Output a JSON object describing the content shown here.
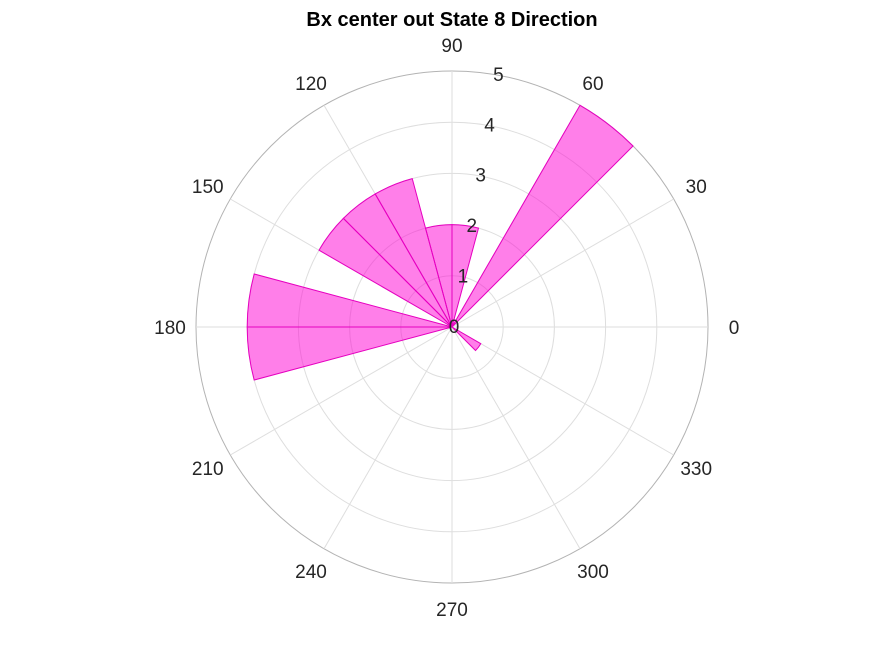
{
  "chart_data": {
    "type": "polar-histogram",
    "title": "Bx  center out State 8 Direction",
    "theta_ticks": [
      "0",
      "30",
      "60",
      "90",
      "120",
      "150",
      "180",
      "210",
      "240",
      "270",
      "300",
      "330"
    ],
    "theta_tick_degrees": [
      0,
      30,
      60,
      90,
      120,
      150,
      180,
      210,
      240,
      270,
      300,
      330
    ],
    "r_ticks": [
      "0",
      "1",
      "2",
      "3",
      "4",
      "5"
    ],
    "r_tick_values": [
      0,
      1,
      2,
      3,
      4,
      5
    ],
    "rlim": [
      0,
      5
    ],
    "grid": true,
    "bin_width_degrees": 15,
    "bins": [
      {
        "start_deg": 45,
        "end_deg": 60,
        "count": 5
      },
      {
        "start_deg": 75,
        "end_deg": 90,
        "count": 2
      },
      {
        "start_deg": 90,
        "end_deg": 105,
        "count": 2
      },
      {
        "start_deg": 105,
        "end_deg": 120,
        "count": 3
      },
      {
        "start_deg": 120,
        "end_deg": 135,
        "count": 3
      },
      {
        "start_deg": 135,
        "end_deg": 150,
        "count": 3
      },
      {
        "start_deg": 165,
        "end_deg": 180,
        "count": 4
      },
      {
        "start_deg": 180,
        "end_deg": 195,
        "count": 4
      },
      {
        "start_deg": 315,
        "end_deg": 330,
        "count": 0.65
      }
    ],
    "colors": {
      "bar_fill": "#ff00d4",
      "bar_edge": "#e600c0"
    }
  }
}
